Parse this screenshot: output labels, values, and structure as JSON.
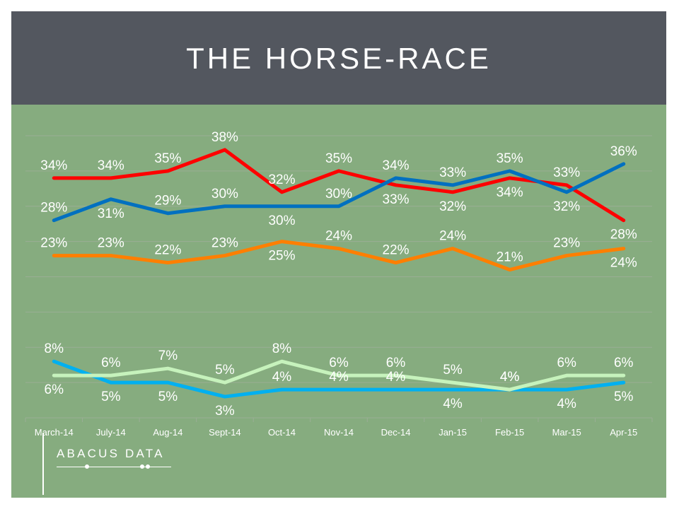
{
  "header": {
    "title": "THE HORSE-RACE"
  },
  "logo": {
    "text": "ABACUS DATA"
  },
  "colors": {
    "background": "#86ac7f",
    "header": "#53575f",
    "grid": "#9aae95",
    "red": "#ff0000",
    "blue": "#0070c0",
    "orange": "#ff7f00",
    "cyan": "#00b0f0",
    "light_green": "#c6f2bc"
  },
  "chart_data": {
    "type": "line",
    "categories": [
      "March-14",
      "July-14",
      "Aug-14",
      "Sept-14",
      "Oct-14",
      "Nov-14",
      "Dec-14",
      "Jan-15",
      "Feb-15",
      "Mar-15",
      "Apr-15"
    ],
    "ylim": [
      0,
      40
    ],
    "grid": true,
    "series": [
      {
        "color": "#ff0000",
        "values": [
          34,
          34,
          35,
          38,
          32,
          35,
          33,
          32,
          34,
          33,
          28
        ],
        "labels": [
          "34%",
          "34%",
          "35%",
          "38%",
          "32%",
          "35%",
          "33%",
          "32%",
          "34%",
          "33%",
          "28%"
        ]
      },
      {
        "color": "#0070c0",
        "values": [
          28,
          31,
          29,
          30,
          30,
          30,
          34,
          33,
          35,
          32,
          36
        ],
        "labels": [
          "28%",
          "31%",
          "29%",
          "30%",
          "30%",
          "30%",
          "34%",
          "33%",
          "35%",
          "32%",
          "36%"
        ]
      },
      {
        "color": "#ff7f00",
        "values": [
          23,
          23,
          22,
          23,
          25,
          24,
          22,
          24,
          21,
          23,
          24
        ],
        "labels": [
          "23%",
          "23%",
          "22%",
          "23%",
          "25%",
          "24%",
          "22%",
          "24%",
          "21%",
          "23%",
          "24%"
        ]
      },
      {
        "color": "#00b0f0",
        "values": [
          8,
          5,
          5,
          3,
          4,
          4,
          4,
          4,
          4,
          4,
          5
        ],
        "labels": [
          "8%",
          "5%",
          "5%",
          "3%",
          "4%",
          "4%",
          "4%",
          "4%",
          "4%",
          "4%",
          "5%"
        ]
      },
      {
        "color": "#c6f2bc",
        "values": [
          6,
          6,
          7,
          5,
          8,
          6,
          6,
          5,
          4,
          6,
          6
        ],
        "labels": [
          "6%",
          "6%",
          "7%",
          "5%",
          "8%",
          "6%",
          "6%",
          "5%",
          "4%",
          "6%",
          "6%"
        ]
      }
    ]
  }
}
